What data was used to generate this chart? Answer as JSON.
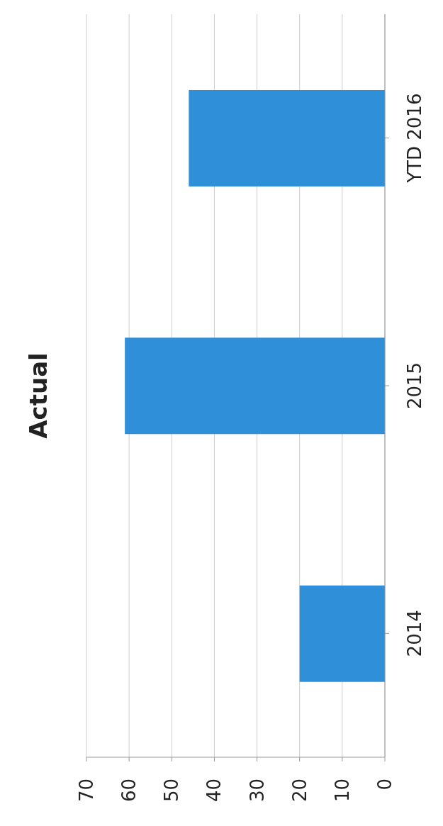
{
  "chart_data": {
    "type": "bar",
    "orientation": "horizontal",
    "title": "Actual",
    "categories": [
      "YTD 2016",
      "2015",
      "2014"
    ],
    "values": [
      46,
      61,
      20
    ],
    "color": "#2f8fd8",
    "xlim": [
      70,
      0
    ],
    "xticks": [
      0,
      10,
      20,
      30,
      40,
      50,
      60,
      70
    ],
    "grid": "x"
  }
}
